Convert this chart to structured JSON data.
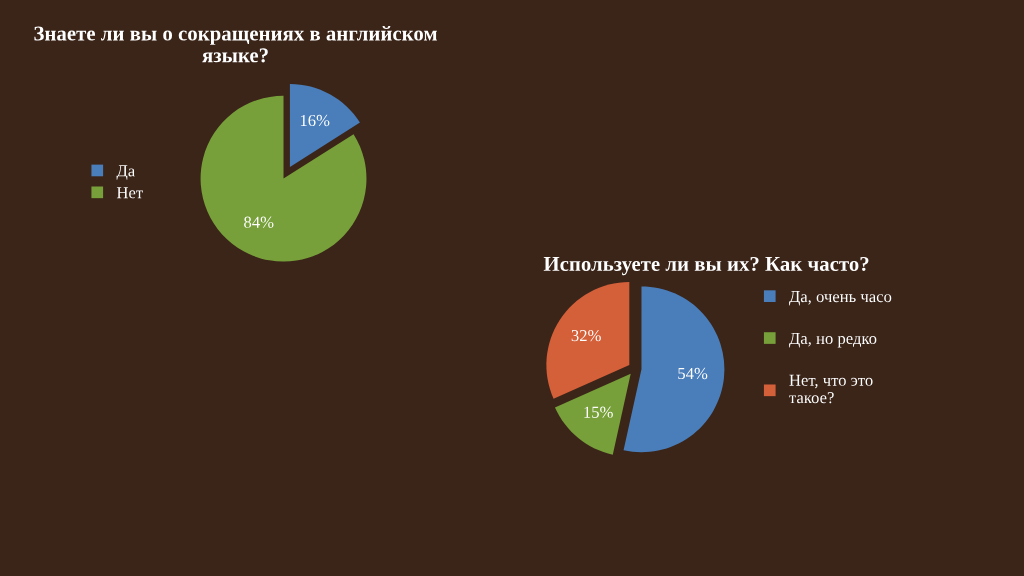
{
  "chart_data": [
    {
      "type": "pie",
      "title": "Знаете ли вы о сокращениях в английском языке?",
      "categories": [
        "Да",
        "Нет"
      ],
      "values": [
        16,
        84
      ],
      "colors": [
        "#4a7ebb",
        "#77a03a"
      ],
      "value_labels": [
        "16%",
        "84%"
      ],
      "legend": "left"
    },
    {
      "type": "pie",
      "title": "Используете ли вы их? Как часто?",
      "categories": [
        "Да, очень часо",
        "Да, но редко",
        "Нет, что это такое?"
      ],
      "values": [
        54,
        15,
        32
      ],
      "colors": [
        "#4a7ebb",
        "#77a03a",
        "#d4603a"
      ],
      "value_labels": [
        "54%",
        "15%",
        "32%"
      ],
      "legend": "right"
    }
  ]
}
